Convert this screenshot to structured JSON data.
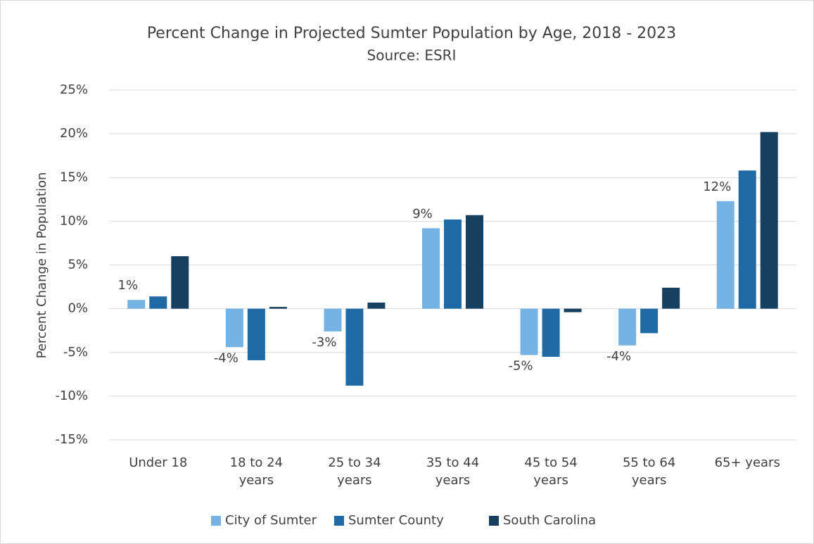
{
  "chart_data": {
    "type": "bar",
    "title": "Percent Change in Projected Sumter Population by Age, 2018 - 2023",
    "subtitle": "Source: ESRI",
    "y_label": "Percent Change in Population",
    "categories": [
      "Under 18",
      "18 to 24 years",
      "25 to 34 years",
      "35 to 44 years",
      "45 to 54 years",
      "55 to 64 years",
      "65+ years"
    ],
    "series": [
      {
        "name": "City of Sumter",
        "color": "#74b3e3",
        "values": [
          1.0,
          -4.4,
          -2.6,
          9.2,
          -5.3,
          -4.2,
          12.3
        ],
        "value_labels": [
          "1%",
          "-4%",
          "-3%",
          "9%",
          "-5%",
          "-4%",
          "12%"
        ]
      },
      {
        "name": "Sumter County",
        "color": "#1f6aa5",
        "values": [
          1.4,
          -5.9,
          -8.8,
          10.2,
          -5.5,
          -2.8,
          15.8
        ]
      },
      {
        "name": "South Carolina",
        "color": "#173f5f",
        "values": [
          6.0,
          0.2,
          0.7,
          10.7,
          -0.4,
          2.4,
          20.2
        ]
      }
    ],
    "ylim": [
      -15,
      25
    ],
    "yticks": [
      {
        "value": -15,
        "label": "-15%"
      },
      {
        "value": -10,
        "label": "-10%"
      },
      {
        "value": -5,
        "label": "-5%"
      },
      {
        "value": 0,
        "label": "0%"
      },
      {
        "value": 5,
        "label": "5%"
      },
      {
        "value": 10,
        "label": "10%"
      },
      {
        "value": 15,
        "label": "15%"
      },
      {
        "value": 20,
        "label": "20%"
      },
      {
        "value": 25,
        "label": "25%"
      }
    ],
    "grid": true,
    "legend": "bottom"
  }
}
